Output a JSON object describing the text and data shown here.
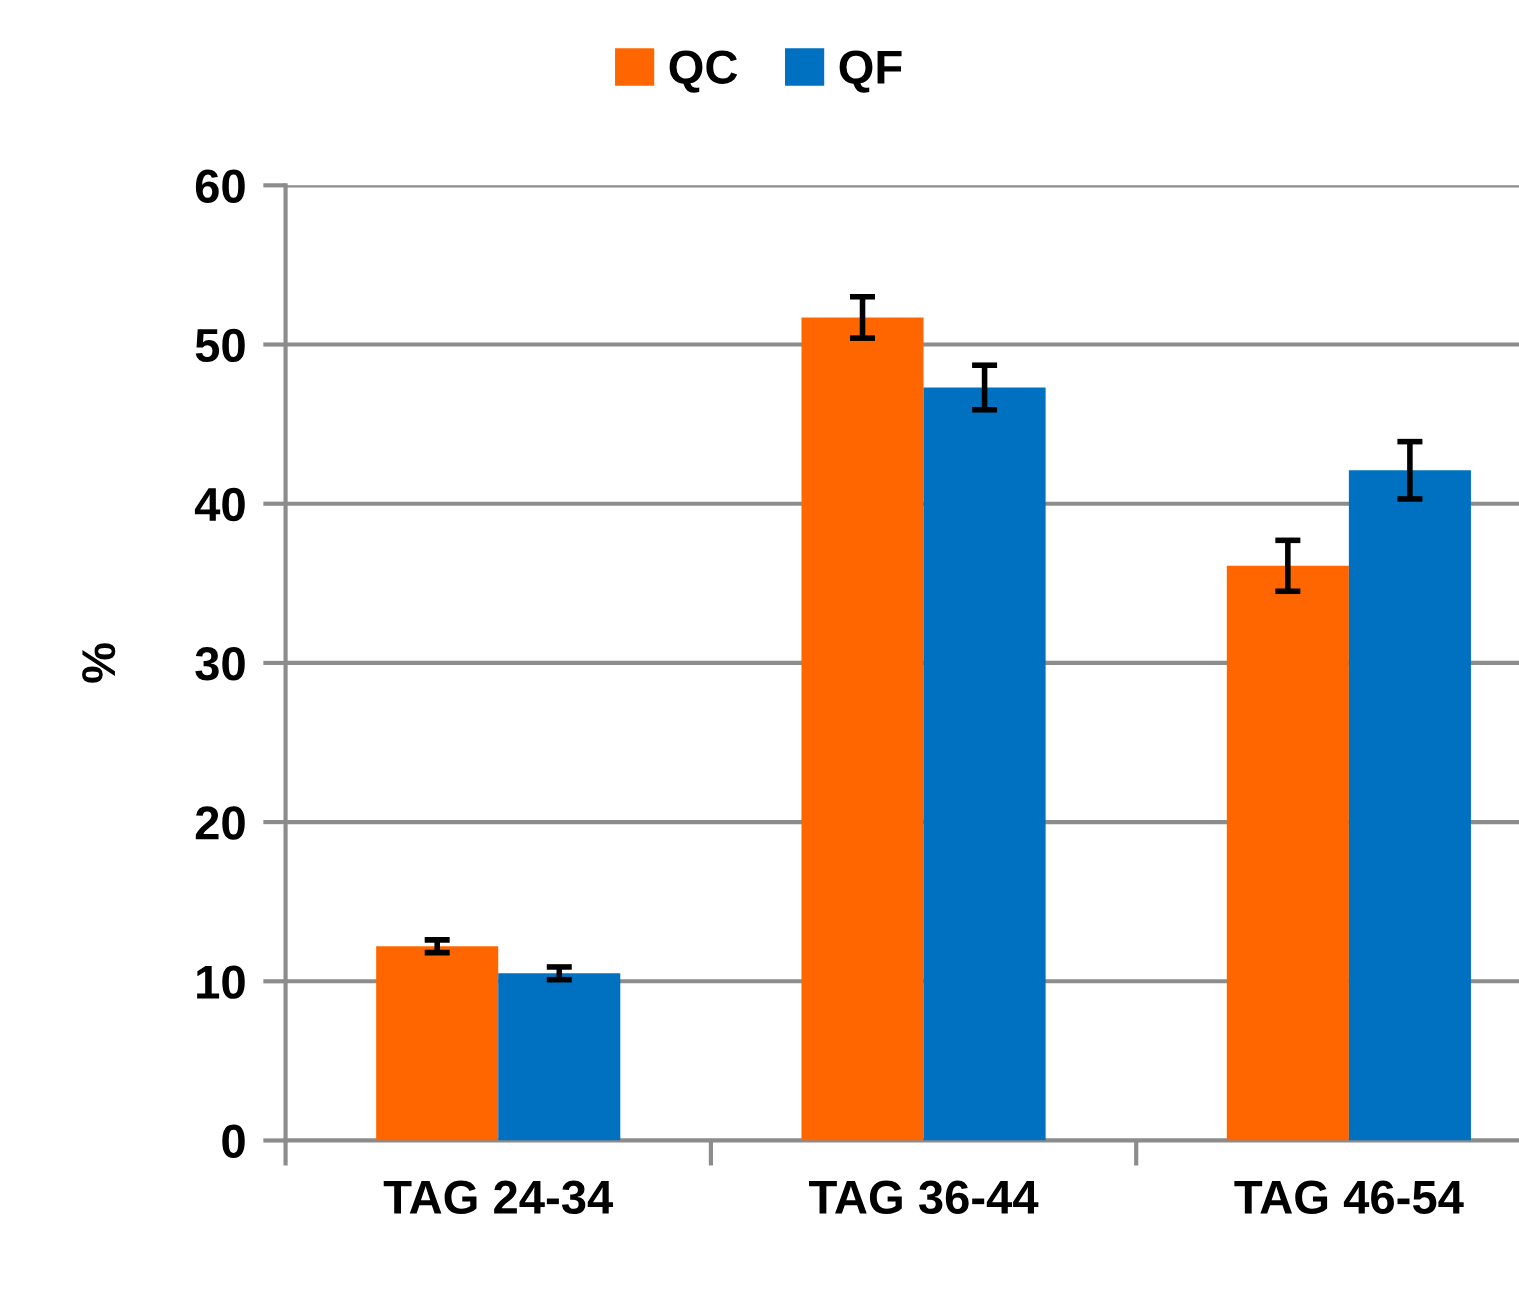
{
  "chart_data": {
    "type": "bar",
    "ylabel": "%",
    "categories": [
      "TAG 24-34",
      "TAG 36-44",
      "TAG 46-54"
    ],
    "series": [
      {
        "name": "QC",
        "color": "#ff6600",
        "values": [
          12.2,
          51.7,
          36.1
        ],
        "errors": [
          0.4,
          1.3,
          1.6
        ]
      },
      {
        "name": "QF",
        "color": "#0070c0",
        "values": [
          10.5,
          47.3,
          42.1
        ],
        "errors": [
          0.4,
          1.4,
          1.8
        ]
      }
    ],
    "ylim": [
      0,
      60
    ],
    "yticks": [
      0,
      10,
      20,
      30,
      40,
      50,
      60
    ],
    "grid": "y",
    "legend": "top"
  }
}
